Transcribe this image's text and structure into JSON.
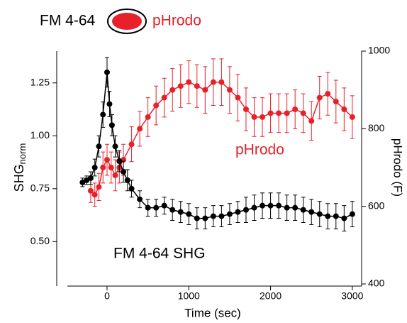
{
  "chart_data": {
    "type": "line",
    "legend": [
      {
        "text": "FM 4-64",
        "color": "#000000"
      },
      {
        "text": "pHrodo",
        "color": "#e8202a"
      }
    ],
    "xlabel": "Time (sec)",
    "ylabel": "SHG",
    "ylabel_subscript": "norm",
    "y2label": "pHrodo (F)",
    "annotations": [
      {
        "text": "pHrodo",
        "color": "#e8202a"
      },
      {
        "text": "FM 4-64 SHG",
        "color": "#000000"
      }
    ],
    "xlim": [
      -600,
      3100
    ],
    "xticks": [
      0,
      1000,
      2000,
      3000
    ],
    "ylim": [
      0.3,
      1.4
    ],
    "yticks": [
      {
        "value": 0.5,
        "label": "0.50"
      },
      0.75,
      {
        "value": 1.0,
        "label": "1.00"
      },
      1.25
    ],
    "y2lim": [
      400,
      1000
    ],
    "y2ticks": [
      400,
      600,
      800,
      1000
    ],
    "series": [
      {
        "name": "FM 4-64 SHG",
        "color": "#000000",
        "axis": "y",
        "x": [
          -300,
          -250,
          -200,
          -150,
          -100,
          -50,
          0,
          30,
          60,
          100,
          150,
          200,
          250,
          300,
          400,
          500,
          600,
          700,
          800,
          900,
          1000,
          1100,
          1200,
          1300,
          1400,
          1500,
          1600,
          1700,
          1800,
          1900,
          2000,
          2100,
          2200,
          2300,
          2400,
          2500,
          2600,
          2700,
          2800,
          2900,
          3000
        ],
        "values": [
          0.78,
          0.79,
          0.8,
          0.85,
          0.95,
          1.1,
          1.3,
          1.15,
          1.05,
          0.95,
          0.88,
          0.83,
          0.79,
          0.75,
          0.7,
          0.66,
          0.66,
          0.67,
          0.65,
          0.64,
          0.63,
          0.61,
          0.61,
          0.62,
          0.62,
          0.63,
          0.64,
          0.65,
          0.66,
          0.67,
          0.67,
          0.67,
          0.66,
          0.66,
          0.65,
          0.64,
          0.63,
          0.62,
          0.62,
          0.61,
          0.63
        ],
        "errors": [
          0.02,
          0.02,
          0.03,
          0.04,
          0.05,
          0.06,
          0.07,
          0.06,
          0.05,
          0.05,
          0.05,
          0.05,
          0.05,
          0.04,
          0.04,
          0.04,
          0.04,
          0.04,
          0.05,
          0.05,
          0.05,
          0.05,
          0.05,
          0.05,
          0.05,
          0.05,
          0.05,
          0.06,
          0.06,
          0.06,
          0.06,
          0.06,
          0.06,
          0.06,
          0.06,
          0.06,
          0.06,
          0.06,
          0.06,
          0.06,
          0.06
        ]
      },
      {
        "name": "pHrodo",
        "color": "#e8202a",
        "axis": "y2",
        "x": [
          -200,
          -150,
          -100,
          -50,
          0,
          50,
          100,
          150,
          200,
          300,
          400,
          500,
          600,
          700,
          800,
          900,
          1000,
          1100,
          1200,
          1300,
          1400,
          1500,
          1600,
          1700,
          1800,
          1900,
          2000,
          2100,
          2200,
          2300,
          2400,
          2500,
          2600,
          2700,
          2800,
          2900,
          3000
        ],
        "values": [
          640,
          630,
          650,
          700,
          720,
          700,
          680,
          700,
          720,
          760,
          800,
          830,
          860,
          880,
          900,
          910,
          920,
          910,
          900,
          920,
          920,
          900,
          880,
          850,
          830,
          830,
          840,
          840,
          840,
          850,
          840,
          820,
          880,
          890,
          870,
          850,
          830
        ],
        "errors": [
          30,
          30,
          35,
          40,
          40,
          40,
          40,
          40,
          40,
          45,
          45,
          50,
          50,
          50,
          55,
          55,
          55,
          55,
          60,
          60,
          60,
          60,
          60,
          55,
          50,
          50,
          50,
          50,
          50,
          50,
          50,
          50,
          55,
          55,
          55,
          55,
          55
        ]
      }
    ]
  }
}
